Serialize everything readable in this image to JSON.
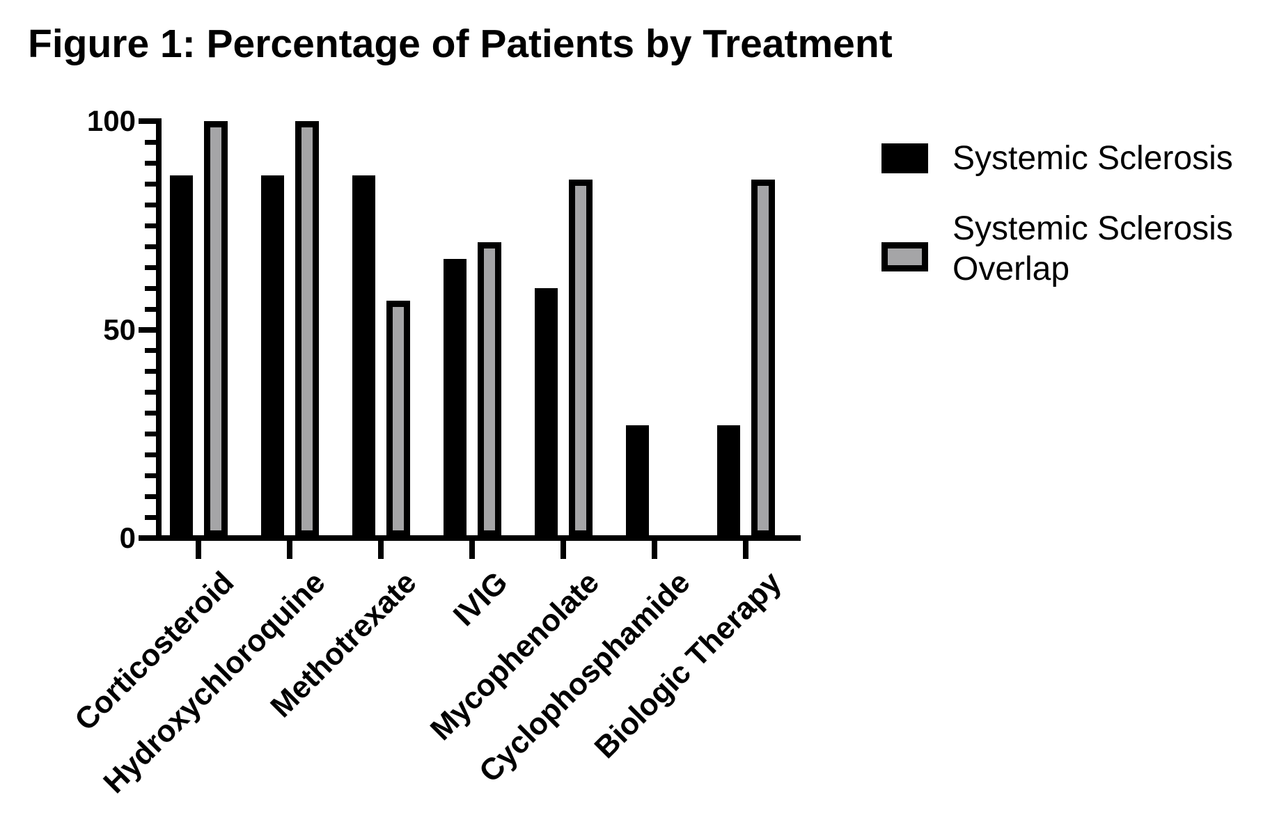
{
  "figure": {
    "title": "Figure 1: Percentage of Patients by Treatment"
  },
  "legend": {
    "items": [
      {
        "label": "Systemic Sclerosis",
        "swatch_fill": "#000000",
        "swatch_border": "#000000"
      },
      {
        "label": "Systemic Sclerosis Overlap",
        "swatch_fill": "#A5A5A7",
        "swatch_border": "#000000"
      }
    ]
  },
  "colors": {
    "series_black": "#000000",
    "series_gray": "#A5A5A7",
    "axis": "#000000",
    "background": "#FFFFFF"
  },
  "chart_data": {
    "type": "bar",
    "title": "Figure 1: Percentage of Patients by Treatment",
    "categories": [
      "Corticosteroid",
      "Hydroxychloroquine",
      "Methotrexate",
      "IVIG",
      "Mycophenolate",
      "Cyclophosphamide",
      "Biologic Therapy"
    ],
    "series": [
      {
        "name": "Systemic Sclerosis",
        "color": "#000000",
        "outline": "#000000",
        "values": [
          87,
          87,
          87,
          67,
          60,
          27,
          27
        ]
      },
      {
        "name": "Systemic Sclerosis Overlap",
        "color": "#A5A5A7",
        "outline": "#000000",
        "values": [
          100,
          100,
          57,
          71,
          86,
          0,
          86
        ]
      }
    ],
    "xlabel": "",
    "ylabel": "",
    "ylim": [
      0,
      100
    ],
    "yticks_major": [
      0,
      50,
      100
    ],
    "ytick_labels": [
      "0",
      "50",
      "100"
    ],
    "yticks_minor_step": 5,
    "grid": false,
    "legend_position": "right",
    "x_labels_rotation_deg": -45
  }
}
